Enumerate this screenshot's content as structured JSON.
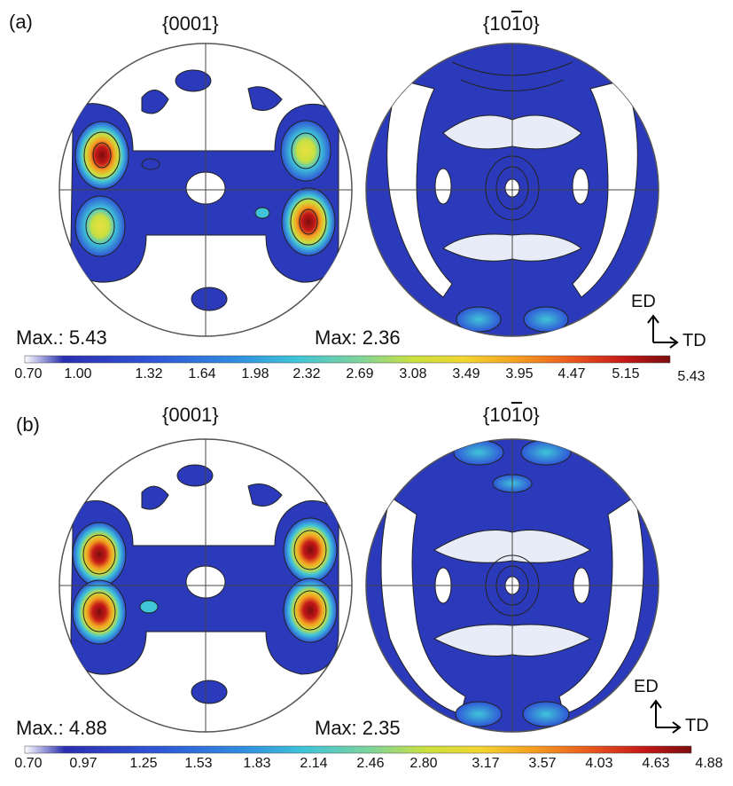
{
  "panels": [
    {
      "label": "(a)",
      "figures": [
        {
          "title": "{0001}",
          "max_text": "Max.: 5.43"
        },
        {
          "title_parts": [
            "{10",
            "1",
            "0}"
          ],
          "max_text": "Max: 2.36"
        }
      ],
      "colorbar_ticks": [
        "0.70",
        "1.00",
        "1.32",
        "1.64",
        "1.98",
        "2.32",
        "2.69",
        "3.08",
        "3.49",
        "3.95",
        "4.47",
        "5.15",
        "5.43"
      ],
      "axes": {
        "ed": "ED",
        "td": "TD"
      }
    },
    {
      "label": "(b)",
      "figures": [
        {
          "title": "{0001}",
          "max_text": "Max.: 4.88"
        },
        {
          "title_parts": [
            "{10",
            "1",
            "0}"
          ],
          "max_text": "Max: 2.35"
        }
      ],
      "colorbar_ticks": [
        "0.70",
        "0.97",
        "1.25",
        "1.53",
        "1.83",
        "2.14",
        "2.46",
        "2.80",
        "3.17",
        "3.57",
        "4.03",
        "4.63",
        "4.88"
      ],
      "axes": {
        "ed": "ED",
        "td": "TD"
      }
    }
  ],
  "colorbar_colors": [
    "#ffffff",
    "#2a2fb0",
    "#2f56d6",
    "#2f8fe0",
    "#3fc4d8",
    "#7fd49a",
    "#c8e040",
    "#f2d630",
    "#f5a021",
    "#e8561c",
    "#c41818",
    "#7a0d0d"
  ]
}
